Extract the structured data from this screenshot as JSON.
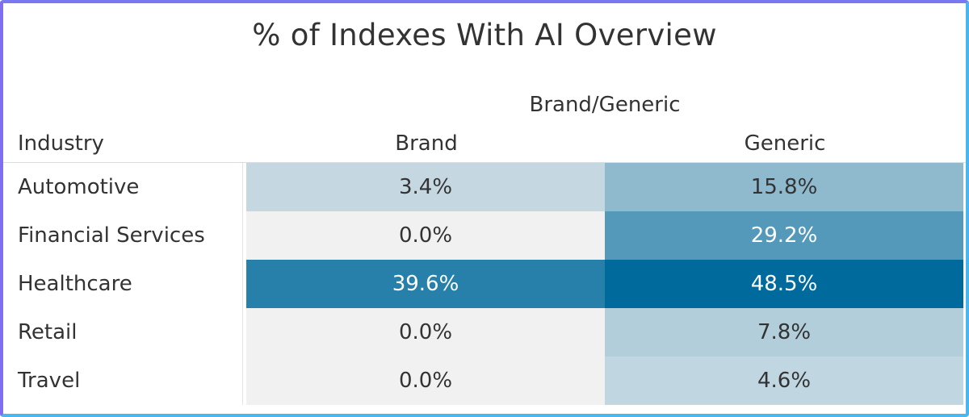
{
  "chart_data": {
    "type": "heatmap",
    "title": "% of Indexes With AI Overview",
    "column_group_label": "Brand/Generic",
    "row_header": "Industry",
    "columns": [
      "Brand",
      "Generic"
    ],
    "rows": [
      {
        "label": "Automotive",
        "values": [
          "3.4%",
          "15.8%"
        ],
        "numeric": [
          3.4,
          15.8
        ]
      },
      {
        "label": "Financial Services",
        "values": [
          "0.0%",
          "29.2%"
        ],
        "numeric": [
          0.0,
          29.2
        ]
      },
      {
        "label": "Healthcare",
        "values": [
          "39.6%",
          "48.5%"
        ],
        "numeric": [
          39.6,
          48.5
        ]
      },
      {
        "label": "Retail",
        "values": [
          "0.0%",
          "7.8%"
        ],
        "numeric": [
          0.0,
          7.8
        ]
      },
      {
        "label": "Travel",
        "values": [
          "0.0%",
          "4.6%"
        ],
        "numeric": [
          0.0,
          4.6
        ]
      }
    ],
    "color_scale": {
      "low": "#f1f1f1",
      "high": "#006a9c",
      "domain": [
        0,
        48.5
      ]
    },
    "light_text_color": "#ffffff",
    "dark_text_color": "#333333"
  }
}
